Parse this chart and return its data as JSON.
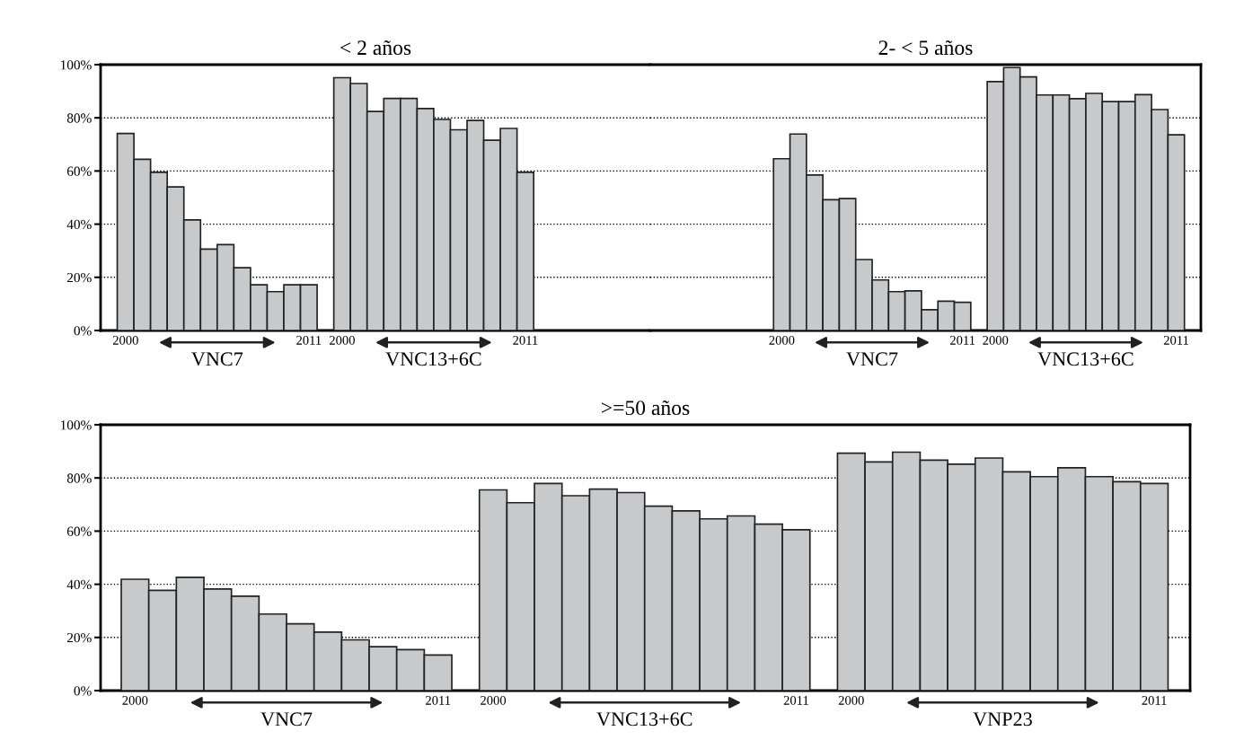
{
  "chart_data": [
    {
      "type": "bar",
      "title": "< 2 años",
      "categories": [
        "2000",
        null,
        null,
        null,
        null,
        null,
        null,
        null,
        null,
        null,
        null,
        "2011",
        null,
        "2000",
        null,
        null,
        null,
        null,
        null,
        null,
        null,
        null,
        null,
        null,
        "2011"
      ],
      "values": [
        74.1,
        64.4,
        59.5,
        54,
        41.6,
        30.6,
        32.3,
        23.6,
        17.2,
        14.6,
        17.2,
        17.2,
        null,
        95.1,
        92.9,
        82.4,
        87.3,
        87.3,
        83.5,
        79.4,
        75.5,
        79,
        71.6,
        76,
        59.5
      ],
      "color": "#c8c9cb",
      "ylim": [
        0,
        100
      ],
      "yticks": [
        {
          "value": 0,
          "label": "0%"
        },
        {
          "value": 20,
          "label": "20%"
        },
        {
          "value": 40,
          "label": "40%"
        },
        {
          "value": 60,
          "label": "60%"
        },
        {
          "value": 80,
          "label": "80%"
        },
        {
          "value": 100,
          "label": "100%"
        }
      ],
      "grid": "y",
      "line_style": "dotted",
      "annotations": [
        "VNC7",
        "VNC13+6C"
      ]
    },
    {
      "type": "bar",
      "title": "2- < 5 años",
      "categories": [
        "2000",
        null,
        null,
        null,
        null,
        null,
        null,
        null,
        null,
        null,
        null,
        "2011",
        null,
        "2000",
        null,
        null,
        null,
        null,
        null,
        null,
        null,
        null,
        null,
        null,
        "2011"
      ],
      "values": [
        64.6,
        73.9,
        58.5,
        49.2,
        49.6,
        26.7,
        19,
        14.6,
        14.9,
        7.8,
        11,
        10.6,
        null,
        93.6,
        98.9,
        95.4,
        88.6,
        88.6,
        87.2,
        89.2,
        86.1,
        86.1,
        88.7,
        83.1,
        73.6
      ],
      "color": "#c8c9cb",
      "ylim": [
        0,
        100
      ],
      "grid": "y",
      "line_style": "dotted",
      "tick_labels": "x",
      "annotations": [
        "VNC7",
        "VNC13+6C"
      ]
    },
    {
      "type": "bar",
      "title": ">=50 años",
      "categories": [
        "2000",
        null,
        null,
        null,
        null,
        null,
        null,
        null,
        null,
        null,
        null,
        "2011",
        null,
        "2000",
        null,
        null,
        null,
        null,
        null,
        null,
        null,
        null,
        null,
        null,
        "2011",
        null,
        "2000",
        null,
        null,
        null,
        null,
        null,
        null,
        null,
        null,
        null,
        null,
        "2011"
      ],
      "values": [
        41.9,
        37.7,
        42.6,
        38.2,
        35.5,
        28.8,
        25.1,
        22,
        19.1,
        16.5,
        15.4,
        13.4,
        null,
        75.5,
        70.7,
        77.9,
        73.3,
        75.8,
        74.5,
        69.4,
        67.6,
        64.6,
        65.7,
        62.6,
        60.5,
        null,
        89.3,
        86,
        89.7,
        86.7,
        85.2,
        87.5,
        82.3,
        80.5,
        83.8,
        80.5,
        78.6,
        77.9
      ],
      "color": "#c8c9cb",
      "ylim": [
        0,
        100
      ],
      "yticks": [
        {
          "value": 0,
          "label": "0%"
        },
        {
          "value": 20,
          "label": "20%"
        },
        {
          "value": 40,
          "label": "40%"
        },
        {
          "value": 60,
          "label": "60%"
        },
        {
          "value": 80,
          "label": "80%"
        },
        {
          "value": 100,
          "label": "100%"
        }
      ],
      "grid": "y",
      "line_style": "dotted",
      "annotations": [
        "VNC7",
        "VNC13+6C",
        "VNP23"
      ]
    }
  ]
}
